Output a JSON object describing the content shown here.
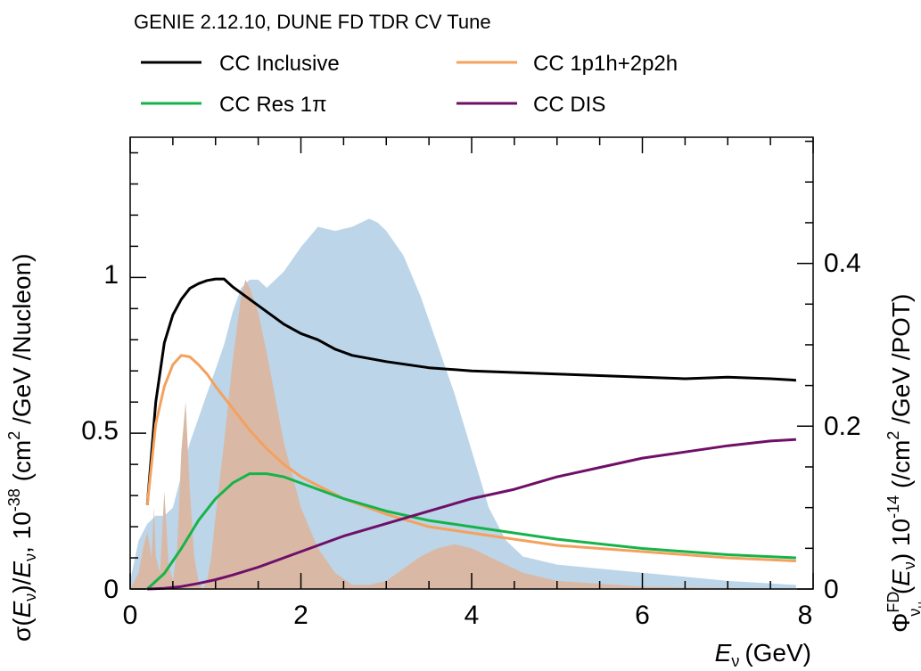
{
  "chart_data": {
    "type": "line",
    "header": "GENIE 2.12.10, DUNE FD TDR CV Tune",
    "xlabel": {
      "symbol": "E",
      "sub": "ν",
      "unit": "(GeV)"
    },
    "ylabel_left": {
      "a": "σ(",
      "b": "E",
      "c": "ν",
      "d": ")/",
      "e": "E",
      "f": "ν",
      "g": ", 10",
      "h": "-38",
      "i": " (cm",
      "j": "2",
      "k": " /GeV /Nucleon)"
    },
    "ylabel_right": {
      "a": "Φ",
      "b": "FD",
      "c": "ν",
      "d": "μ",
      "e": "(",
      "f": "E",
      "g": "ν",
      "h": ") 10",
      "i": "-14",
      "j": " (/cm",
      "k": "2",
      "l": " /GeV /POT)"
    },
    "xlim": [
      0,
      8
    ],
    "ylim_left": [
      0,
      1.45
    ],
    "ylim_right": [
      0,
      0.555
    ],
    "x_ticks": [
      "0",
      "2",
      "4",
      "6",
      "8"
    ],
    "y_ticks_left": [
      "0",
      "0.5",
      "1"
    ],
    "y_ticks_right": [
      "0",
      "0.2",
      "0.4"
    ],
    "legend_position": "top",
    "series": [
      {
        "name": "CC Inclusive",
        "color": "#000000",
        "axis": "left",
        "x": [
          0.2,
          0.3,
          0.4,
          0.5,
          0.6,
          0.7,
          0.8,
          0.9,
          1.0,
          1.1,
          1.2,
          1.4,
          1.6,
          1.8,
          2.0,
          2.2,
          2.4,
          2.6,
          2.8,
          3.0,
          3.5,
          4.0,
          4.5,
          5.0,
          5.5,
          6.0,
          6.5,
          7.0,
          7.5,
          7.8
        ],
        "y": [
          0.27,
          0.6,
          0.79,
          0.88,
          0.93,
          0.965,
          0.98,
          0.99,
          0.995,
          0.995,
          0.97,
          0.93,
          0.89,
          0.85,
          0.82,
          0.8,
          0.77,
          0.75,
          0.74,
          0.73,
          0.71,
          0.7,
          0.695,
          0.69,
          0.685,
          0.68,
          0.675,
          0.68,
          0.675,
          0.67
        ]
      },
      {
        "name": "CC 1p1h+2p2h",
        "color": "#f4a15d",
        "axis": "left",
        "x": [
          0.2,
          0.3,
          0.4,
          0.5,
          0.6,
          0.7,
          0.8,
          0.9,
          1.0,
          1.2,
          1.4,
          1.6,
          1.8,
          2.0,
          2.5,
          3.0,
          3.5,
          4.0,
          4.5,
          5.0,
          6.0,
          7.0,
          7.8
        ],
        "y": [
          0.27,
          0.53,
          0.65,
          0.72,
          0.75,
          0.745,
          0.72,
          0.69,
          0.65,
          0.58,
          0.51,
          0.45,
          0.4,
          0.36,
          0.29,
          0.24,
          0.2,
          0.18,
          0.16,
          0.14,
          0.12,
          0.1,
          0.09
        ]
      },
      {
        "name": "CC Res 1π",
        "color": "#17b34a",
        "axis": "left",
        "x": [
          0.2,
          0.4,
          0.6,
          0.8,
          1.0,
          1.2,
          1.4,
          1.6,
          1.8,
          2.0,
          2.2,
          2.5,
          3.0,
          3.5,
          4.0,
          4.5,
          5.0,
          6.0,
          7.0,
          7.8
        ],
        "y": [
          0.0,
          0.05,
          0.13,
          0.22,
          0.29,
          0.34,
          0.37,
          0.37,
          0.36,
          0.34,
          0.32,
          0.29,
          0.25,
          0.22,
          0.2,
          0.18,
          0.16,
          0.13,
          0.11,
          0.1
        ]
      },
      {
        "name": "CC DIS",
        "color": "#6f0f68",
        "axis": "left",
        "x": [
          0.2,
          0.4,
          0.6,
          0.8,
          1.0,
          1.2,
          1.5,
          2.0,
          2.5,
          3.0,
          3.5,
          4.0,
          4.5,
          5.0,
          5.5,
          6.0,
          6.5,
          7.0,
          7.5,
          7.8
        ],
        "y": [
          0.0,
          0.002,
          0.008,
          0.018,
          0.03,
          0.045,
          0.07,
          0.12,
          0.17,
          0.21,
          0.25,
          0.29,
          0.32,
          0.36,
          0.39,
          0.42,
          0.44,
          0.46,
          0.475,
          0.48
        ]
      }
    ],
    "areas": [
      {
        "label": "flux_light_blue",
        "color": "#bcd5e8",
        "axis": "right",
        "x": [
          0.0,
          0.1,
          0.2,
          0.3,
          0.4,
          0.5,
          0.6,
          0.7,
          0.8,
          0.9,
          1.0,
          1.1,
          1.2,
          1.3,
          1.4,
          1.5,
          1.6,
          1.8,
          2.0,
          2.2,
          2.4,
          2.6,
          2.8,
          2.9,
          3.0,
          3.2,
          3.4,
          3.6,
          3.8,
          4.0,
          4.2,
          4.4,
          4.6,
          5.0,
          6.0,
          7.0,
          7.8
        ],
        "y": [
          0.01,
          0.06,
          0.08,
          0.09,
          0.09,
          0.1,
          0.14,
          0.18,
          0.21,
          0.24,
          0.27,
          0.3,
          0.34,
          0.37,
          0.38,
          0.38,
          0.37,
          0.39,
          0.42,
          0.445,
          0.44,
          0.445,
          0.455,
          0.45,
          0.44,
          0.41,
          0.36,
          0.3,
          0.24,
          0.17,
          0.1,
          0.06,
          0.04,
          0.03,
          0.02,
          0.01,
          0.005
        ]
      },
      {
        "label": "flux_brown",
        "color": "#d9b9a6",
        "axis": "right",
        "x": [
          0.0,
          0.1,
          0.15,
          0.2,
          0.25,
          0.28,
          0.3,
          0.35,
          0.4,
          0.45,
          0.5,
          0.55,
          0.6,
          0.65,
          0.7,
          0.75,
          0.8,
          0.85,
          0.9,
          0.95,
          1.0,
          1.1,
          1.2,
          1.3,
          1.35,
          1.4,
          1.5,
          1.6,
          1.8,
          2.0,
          2.2,
          2.4,
          2.6,
          2.8,
          3.0,
          3.2,
          3.4,
          3.6,
          3.8,
          4.0,
          4.2,
          4.4,
          4.6,
          5.0,
          6.0,
          7.8
        ],
        "y": [
          0.0,
          0.02,
          0.05,
          0.07,
          0.04,
          0.1,
          0.04,
          0.02,
          0.12,
          0.03,
          0.01,
          0.05,
          0.17,
          0.23,
          0.12,
          0.04,
          0.01,
          0.0,
          0.01,
          0.04,
          0.09,
          0.18,
          0.28,
          0.36,
          0.38,
          0.37,
          0.34,
          0.29,
          0.18,
          0.1,
          0.05,
          0.02,
          0.005,
          0.005,
          0.01,
          0.025,
          0.04,
          0.05,
          0.055,
          0.05,
          0.04,
          0.03,
          0.02,
          0.01,
          0.003,
          0.0
        ]
      }
    ]
  }
}
